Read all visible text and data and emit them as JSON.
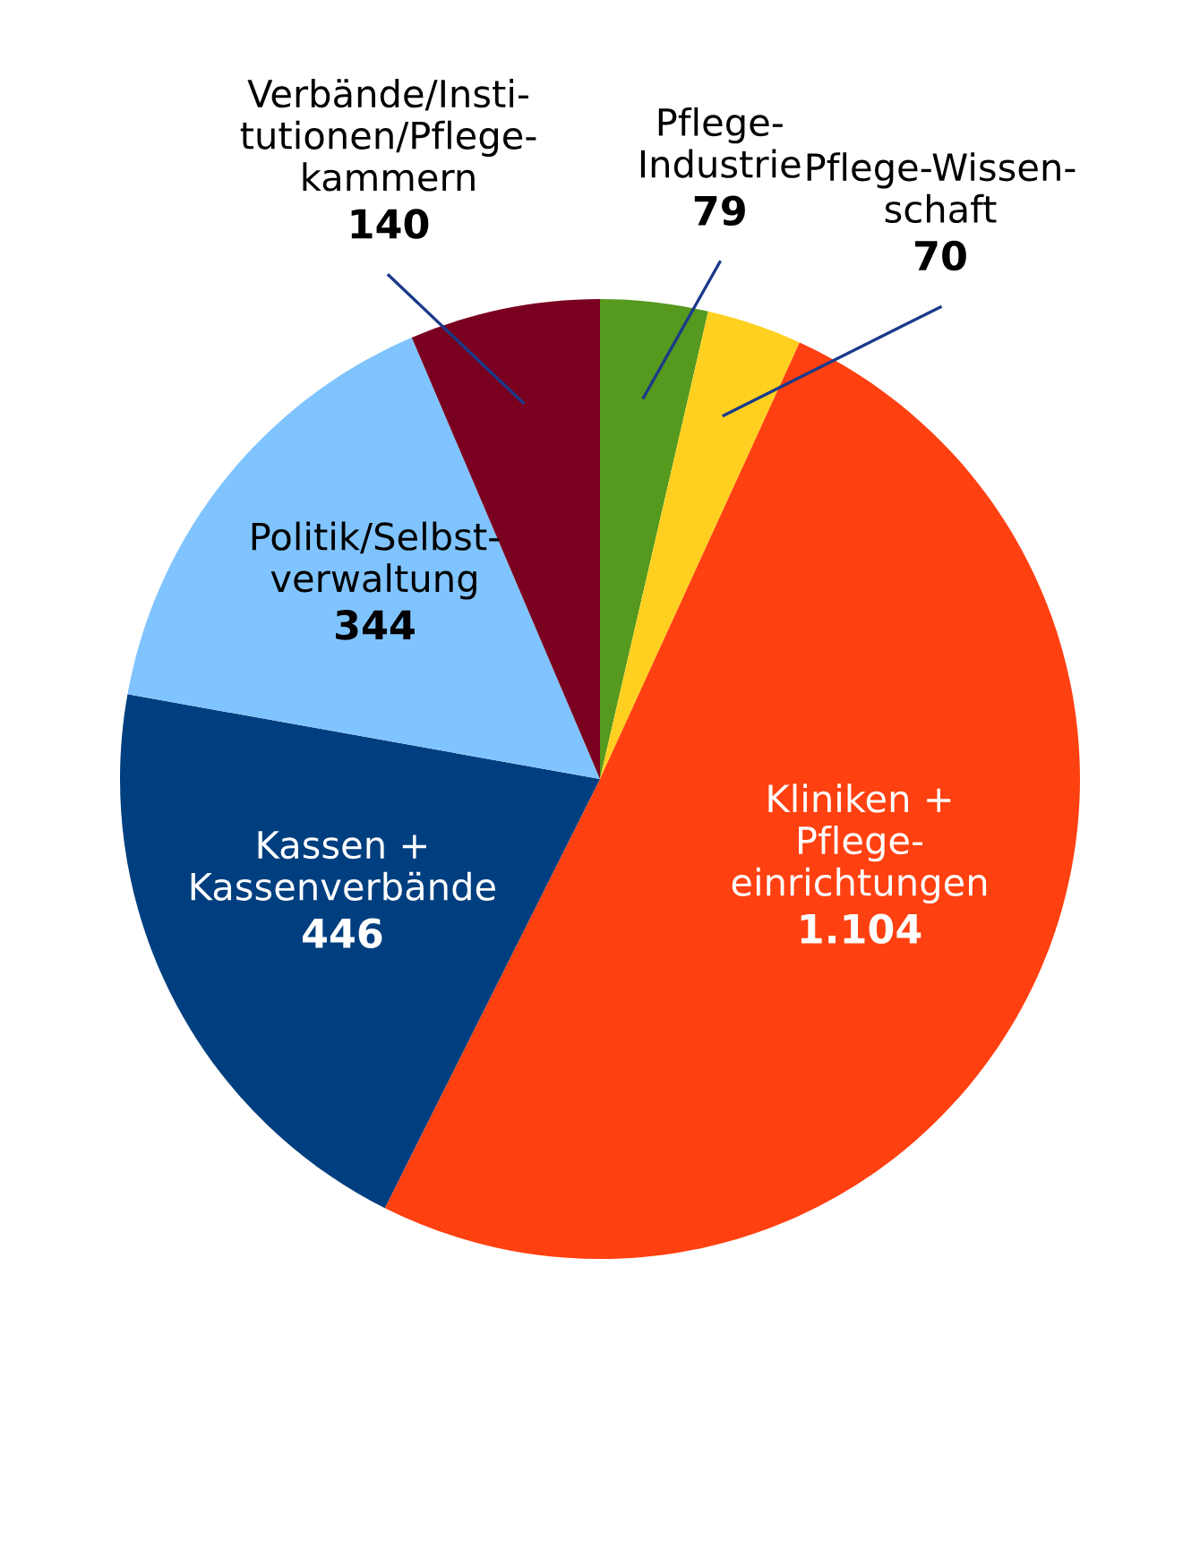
{
  "chart_data": {
    "type": "pie",
    "categories": [
      "Pflege-\nIndustrie",
      "Pflege-Wissen-\nschaft",
      "Kliniken +\nPflege-\neinrichtungen",
      "Kassen +\nKassenverbände",
      "Politik/Selbst-\nverwaltung",
      "Verbände/Insti-\ntutionen/Pflege-\nkammern"
    ],
    "values": [
      79,
      70,
      1104,
      446,
      344,
      140
    ],
    "value_labels": [
      "79",
      "70",
      "1.104",
      "446",
      "344",
      "140"
    ],
    "colors": [
      "#55991f",
      "#ffd020",
      "#ff4010",
      "#003f7f",
      "#80c4ff",
      "#7a0020"
    ]
  }
}
